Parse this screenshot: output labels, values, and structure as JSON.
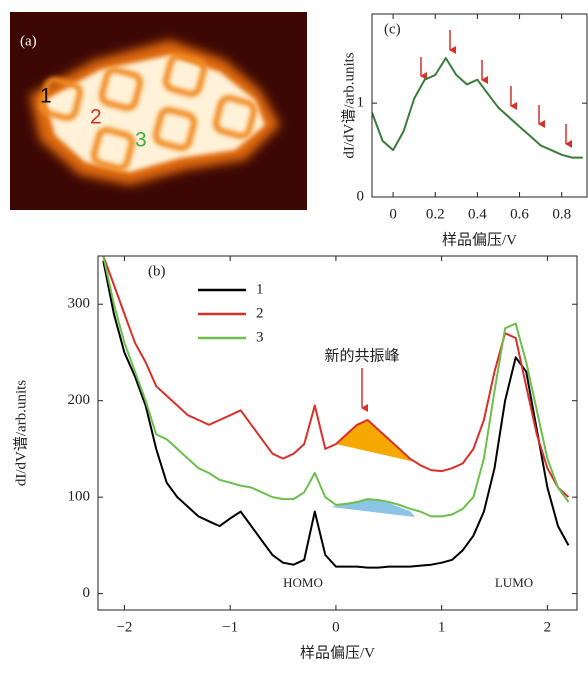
{
  "image_panel": {
    "label": "(a)",
    "markers": [
      "1",
      "2",
      "3"
    ]
  },
  "chart_data": [
    {
      "type": "line",
      "panel_label": "(c)",
      "ylabel": "dI/dV谱/arb.units",
      "xlabel": "样品偏压/V",
      "x": [
        -0.1,
        -0.05,
        0,
        0.05,
        0.1,
        0.15,
        0.2,
        0.25,
        0.3,
        0.35,
        0.4,
        0.45,
        0.5,
        0.55,
        0.6,
        0.65,
        0.7,
        0.75,
        0.8,
        0.85,
        0.9
      ],
      "values": [
        0.9,
        0.6,
        0.5,
        0.7,
        1.05,
        1.25,
        1.3,
        1.48,
        1.3,
        1.2,
        1.25,
        1.1,
        0.95,
        0.85,
        0.75,
        0.65,
        0.55,
        0.5,
        0.45,
        0.42,
        0.42
      ],
      "color": "#3a7d3a",
      "xlim": [
        -0.1,
        0.92
      ],
      "xticks": [
        0,
        0.2,
        0.4,
        0.6,
        0.8
      ],
      "ylim": [
        0,
        1.95
      ],
      "yticks": [
        0,
        1
      ]
    },
    {
      "type": "line",
      "panel_label": "(b)",
      "ylabel": "dI/dV谱/arb.units",
      "xlabel": "样品偏压/V",
      "annotations": [
        "新的共振峰",
        "HOMO",
        "LUMO"
      ],
      "x": [
        -2.2,
        -2.1,
        -2.0,
        -1.9,
        -1.8,
        -1.7,
        -1.6,
        -1.5,
        -1.4,
        -1.3,
        -1.2,
        -1.1,
        -1.0,
        -0.9,
        -0.8,
        -0.7,
        -0.6,
        -0.5,
        -0.4,
        -0.3,
        -0.2,
        -0.1,
        0,
        0.1,
        0.2,
        0.3,
        0.4,
        0.5,
        0.6,
        0.7,
        0.8,
        0.9,
        1.0,
        1.1,
        1.2,
        1.3,
        1.4,
        1.5,
        1.6,
        1.7,
        1.8,
        1.9,
        2.0,
        2.1,
        2.2
      ],
      "series": [
        {
          "name": "1",
          "color": "#000000",
          "values": [
            345,
            290,
            250,
            225,
            195,
            150,
            115,
            100,
            90,
            80,
            75,
            70,
            78,
            85,
            70,
            55,
            40,
            32,
            30,
            35,
            85,
            40,
            28,
            28,
            28,
            27,
            27,
            28,
            28,
            28,
            29,
            30,
            32,
            35,
            45,
            60,
            85,
            130,
            200,
            245,
            230,
            170,
            110,
            70,
            50
          ]
        },
        {
          "name": "2",
          "color": "#d9302b",
          "values": [
            350,
            320,
            290,
            260,
            240,
            215,
            205,
            195,
            185,
            180,
            175,
            180,
            185,
            190,
            175,
            160,
            145,
            140,
            145,
            155,
            195,
            150,
            155,
            165,
            175,
            180,
            170,
            160,
            150,
            140,
            133,
            128,
            127,
            130,
            135,
            150,
            180,
            230,
            270,
            265,
            215,
            165,
            130,
            110,
            100
          ]
        },
        {
          "name": "3",
          "color": "#6cbf4a",
          "values": [
            350,
            300,
            260,
            230,
            200,
            165,
            160,
            150,
            140,
            130,
            125,
            118,
            115,
            112,
            110,
            105,
            100,
            98,
            98,
            105,
            125,
            100,
            92,
            93,
            95,
            98,
            97,
            95,
            92,
            88,
            85,
            80,
            80,
            82,
            88,
            100,
            140,
            210,
            275,
            280,
            240,
            190,
            140,
            110,
            95
          ]
        }
      ],
      "xlim": [
        -2.25,
        2.28
      ],
      "xticks": [
        {
          "value": -2,
          "label": "−2"
        },
        {
          "value": -1,
          "label": "−1"
        },
        0,
        1,
        2
      ],
      "ylim": [
        -17,
        350
      ],
      "yticks": [
        0,
        100,
        200,
        300
      ]
    }
  ]
}
